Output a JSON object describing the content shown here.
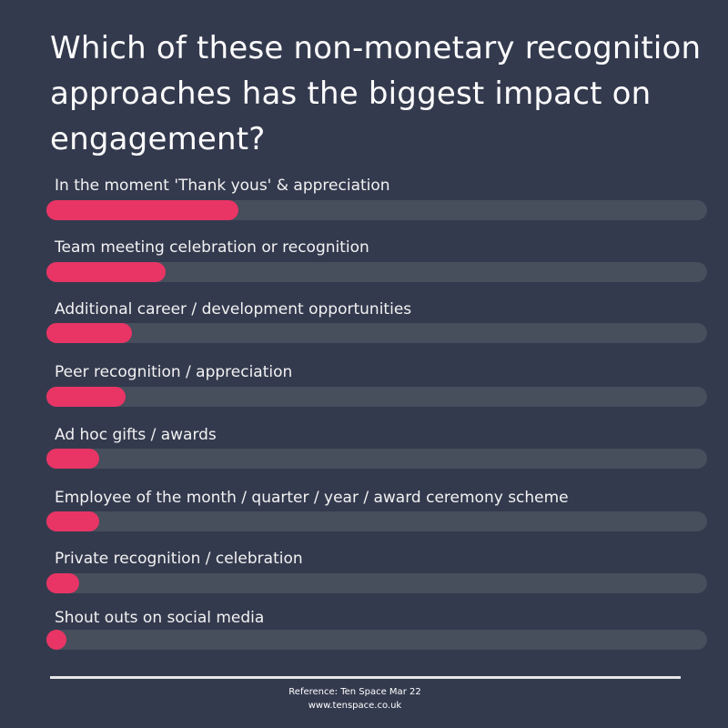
{
  "chart_data": {
    "type": "bar",
    "orientation": "horizontal",
    "title": "Which of these non-monetary recognition approaches has the biggest impact on engagement?",
    "categories": [
      "In the moment 'Thank yous' & appreciation",
      "Team meeting celebration or recognition",
      "Additional career / development opportunities",
      "Peer recognition / appreciation",
      "Ad hoc gifts / awards",
      "Employee of the month / quarter / year / award ceremony scheme",
      "Private recognition / celebration",
      "Shout outs on social media"
    ],
    "values": [
      29,
      18,
      13,
      12,
      8,
      8,
      5,
      2
    ],
    "value_unit": "% of bar length",
    "xlim": [
      0,
      100
    ],
    "grid": false,
    "legend": "none",
    "colors": {
      "background": "#343a4e",
      "track": "#474e5c",
      "bar": "#e83565"
    }
  },
  "footer": {
    "reference": "Reference: Ten Space Mar 22",
    "website": "www.tenspace.co.uk"
  }
}
